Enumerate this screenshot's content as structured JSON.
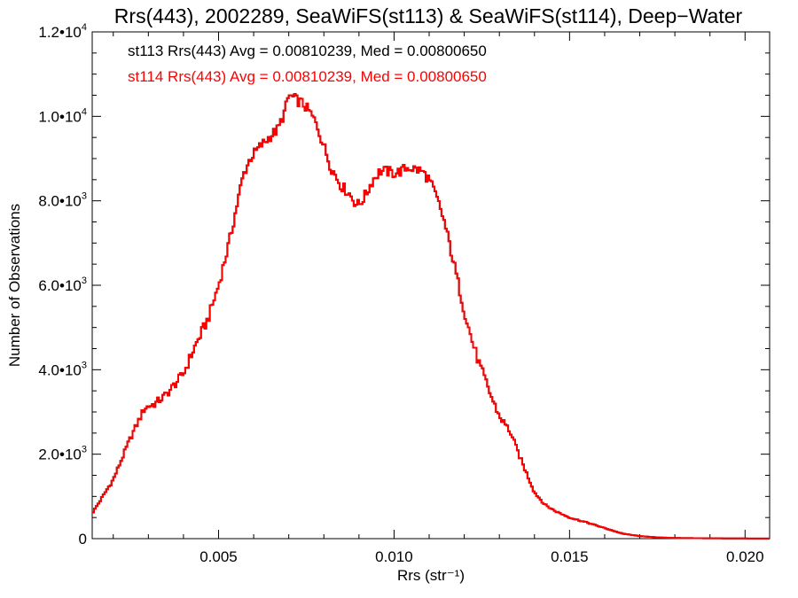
{
  "chart_data": {
    "type": "line",
    "title": "Rrs(443), 2002289, SeaWiFS(st113) & SeaWiFS(st114), Deep−Water",
    "xlabel": "Rrs (str⁻¹)",
    "ylabel": "Number of Observations",
    "xlim": [
      0.0014,
      0.0207
    ],
    "ylim": [
      0,
      12000
    ],
    "x_ticks": [
      {
        "value": 0.005,
        "label": "0.005"
      },
      {
        "value": 0.01,
        "label": "0.010"
      },
      {
        "value": 0.015,
        "label": "0.015"
      },
      {
        "value": 0.02,
        "label": "0.020"
      }
    ],
    "y_ticks": [
      {
        "value": 0,
        "mant": "0",
        "exp": ""
      },
      {
        "value": 2000,
        "mant": "2.0•10",
        "exp": "3"
      },
      {
        "value": 4000,
        "mant": "4.0•10",
        "exp": "3"
      },
      {
        "value": 6000,
        "mant": "6.0•10",
        "exp": "3"
      },
      {
        "value": 8000,
        "mant": "8.0•10",
        "exp": "3"
      },
      {
        "value": 10000,
        "mant": "1.0•10",
        "exp": "4"
      },
      {
        "value": 12000,
        "mant": "1.2•10",
        "exp": "4"
      }
    ],
    "annotations": [
      {
        "text": "st113 Rrs(443) Avg = 0.00810239, Med = 0.00800650",
        "color": "#000000"
      },
      {
        "text": "st114 Rrs(443) Avg = 0.00810239, Med = 0.00800650",
        "color": "#ff0000"
      }
    ],
    "series": [
      {
        "color": "#ff0000",
        "x": [
          0.0014,
          0.002,
          0.0025,
          0.0029,
          0.0032,
          0.0035,
          0.004,
          0.0043,
          0.0047,
          0.005,
          0.0053,
          0.0055,
          0.0057,
          0.0059,
          0.0062,
          0.0065,
          0.0067,
          0.0069,
          0.007,
          0.0072,
          0.0074,
          0.0076,
          0.0078,
          0.008,
          0.0082,
          0.0085,
          0.0087,
          0.0089,
          0.009,
          0.0092,
          0.0094,
          0.0096,
          0.0098,
          0.01,
          0.0102,
          0.0104,
          0.0106,
          0.0108,
          0.011,
          0.0112,
          0.0114,
          0.0116,
          0.0118,
          0.012,
          0.0122,
          0.0124,
          0.0126,
          0.0128,
          0.013,
          0.0133,
          0.0136,
          0.014,
          0.0143,
          0.0146,
          0.015,
          0.0155,
          0.016,
          0.0165,
          0.017,
          0.0175,
          0.018,
          0.019,
          0.02,
          0.0207
        ],
        "y": [
          600,
          1400,
          2400,
          3100,
          3200,
          3400,
          3900,
          4500,
          5200,
          6000,
          7000,
          7800,
          8600,
          9000,
          9300,
          9550,
          9700,
          10150,
          10500,
          10400,
          10300,
          10100,
          9800,
          9300,
          8800,
          8350,
          8200,
          7950,
          7900,
          8150,
          8500,
          8700,
          8700,
          8650,
          8700,
          8800,
          8750,
          8700,
          8500,
          8100,
          7600,
          6900,
          6150,
          5400,
          4750,
          4200,
          3750,
          3300,
          2900,
          2550,
          1900,
          1100,
          800,
          650,
          500,
          380,
          250,
          120,
          60,
          30,
          15,
          8,
          4,
          2
        ]
      },
      {
        "color": "#000000",
        "x": [
          0.0014,
          0.002,
          0.0025,
          0.0029,
          0.0032,
          0.0035,
          0.004,
          0.0043,
          0.0047,
          0.005,
          0.0053,
          0.0055,
          0.0057,
          0.0059,
          0.0062,
          0.0065,
          0.0067,
          0.0069,
          0.007,
          0.0072,
          0.0074,
          0.0076,
          0.0078,
          0.008,
          0.0082,
          0.0085,
          0.0087,
          0.0089,
          0.009,
          0.0092,
          0.0094,
          0.0096,
          0.0098,
          0.01,
          0.0102,
          0.0104,
          0.0106,
          0.0108,
          0.011,
          0.0112,
          0.0114,
          0.0116,
          0.0118,
          0.012,
          0.0122,
          0.0124,
          0.0126,
          0.0128,
          0.013,
          0.0133,
          0.0136,
          0.014,
          0.0143,
          0.0146,
          0.015,
          0.0155,
          0.016,
          0.0165,
          0.017,
          0.0175,
          0.018,
          0.019,
          0.02,
          0.0207
        ],
        "y": [
          600,
          1400,
          2400,
          3100,
          3200,
          3400,
          3900,
          4500,
          5200,
          6000,
          7000,
          7800,
          8600,
          9000,
          9300,
          9550,
          9700,
          10150,
          10500,
          10400,
          10300,
          10100,
          9800,
          9300,
          8800,
          8350,
          8200,
          7950,
          7900,
          8150,
          8500,
          8700,
          8700,
          8650,
          8700,
          8800,
          8750,
          8700,
          8500,
          8100,
          7600,
          6900,
          6150,
          5400,
          4750,
          4200,
          3750,
          3300,
          2900,
          2550,
          1900,
          1100,
          800,
          650,
          500,
          380,
          250,
          120,
          60,
          30,
          15,
          8,
          4,
          2
        ]
      }
    ],
    "grid": false,
    "line_style": "step"
  }
}
